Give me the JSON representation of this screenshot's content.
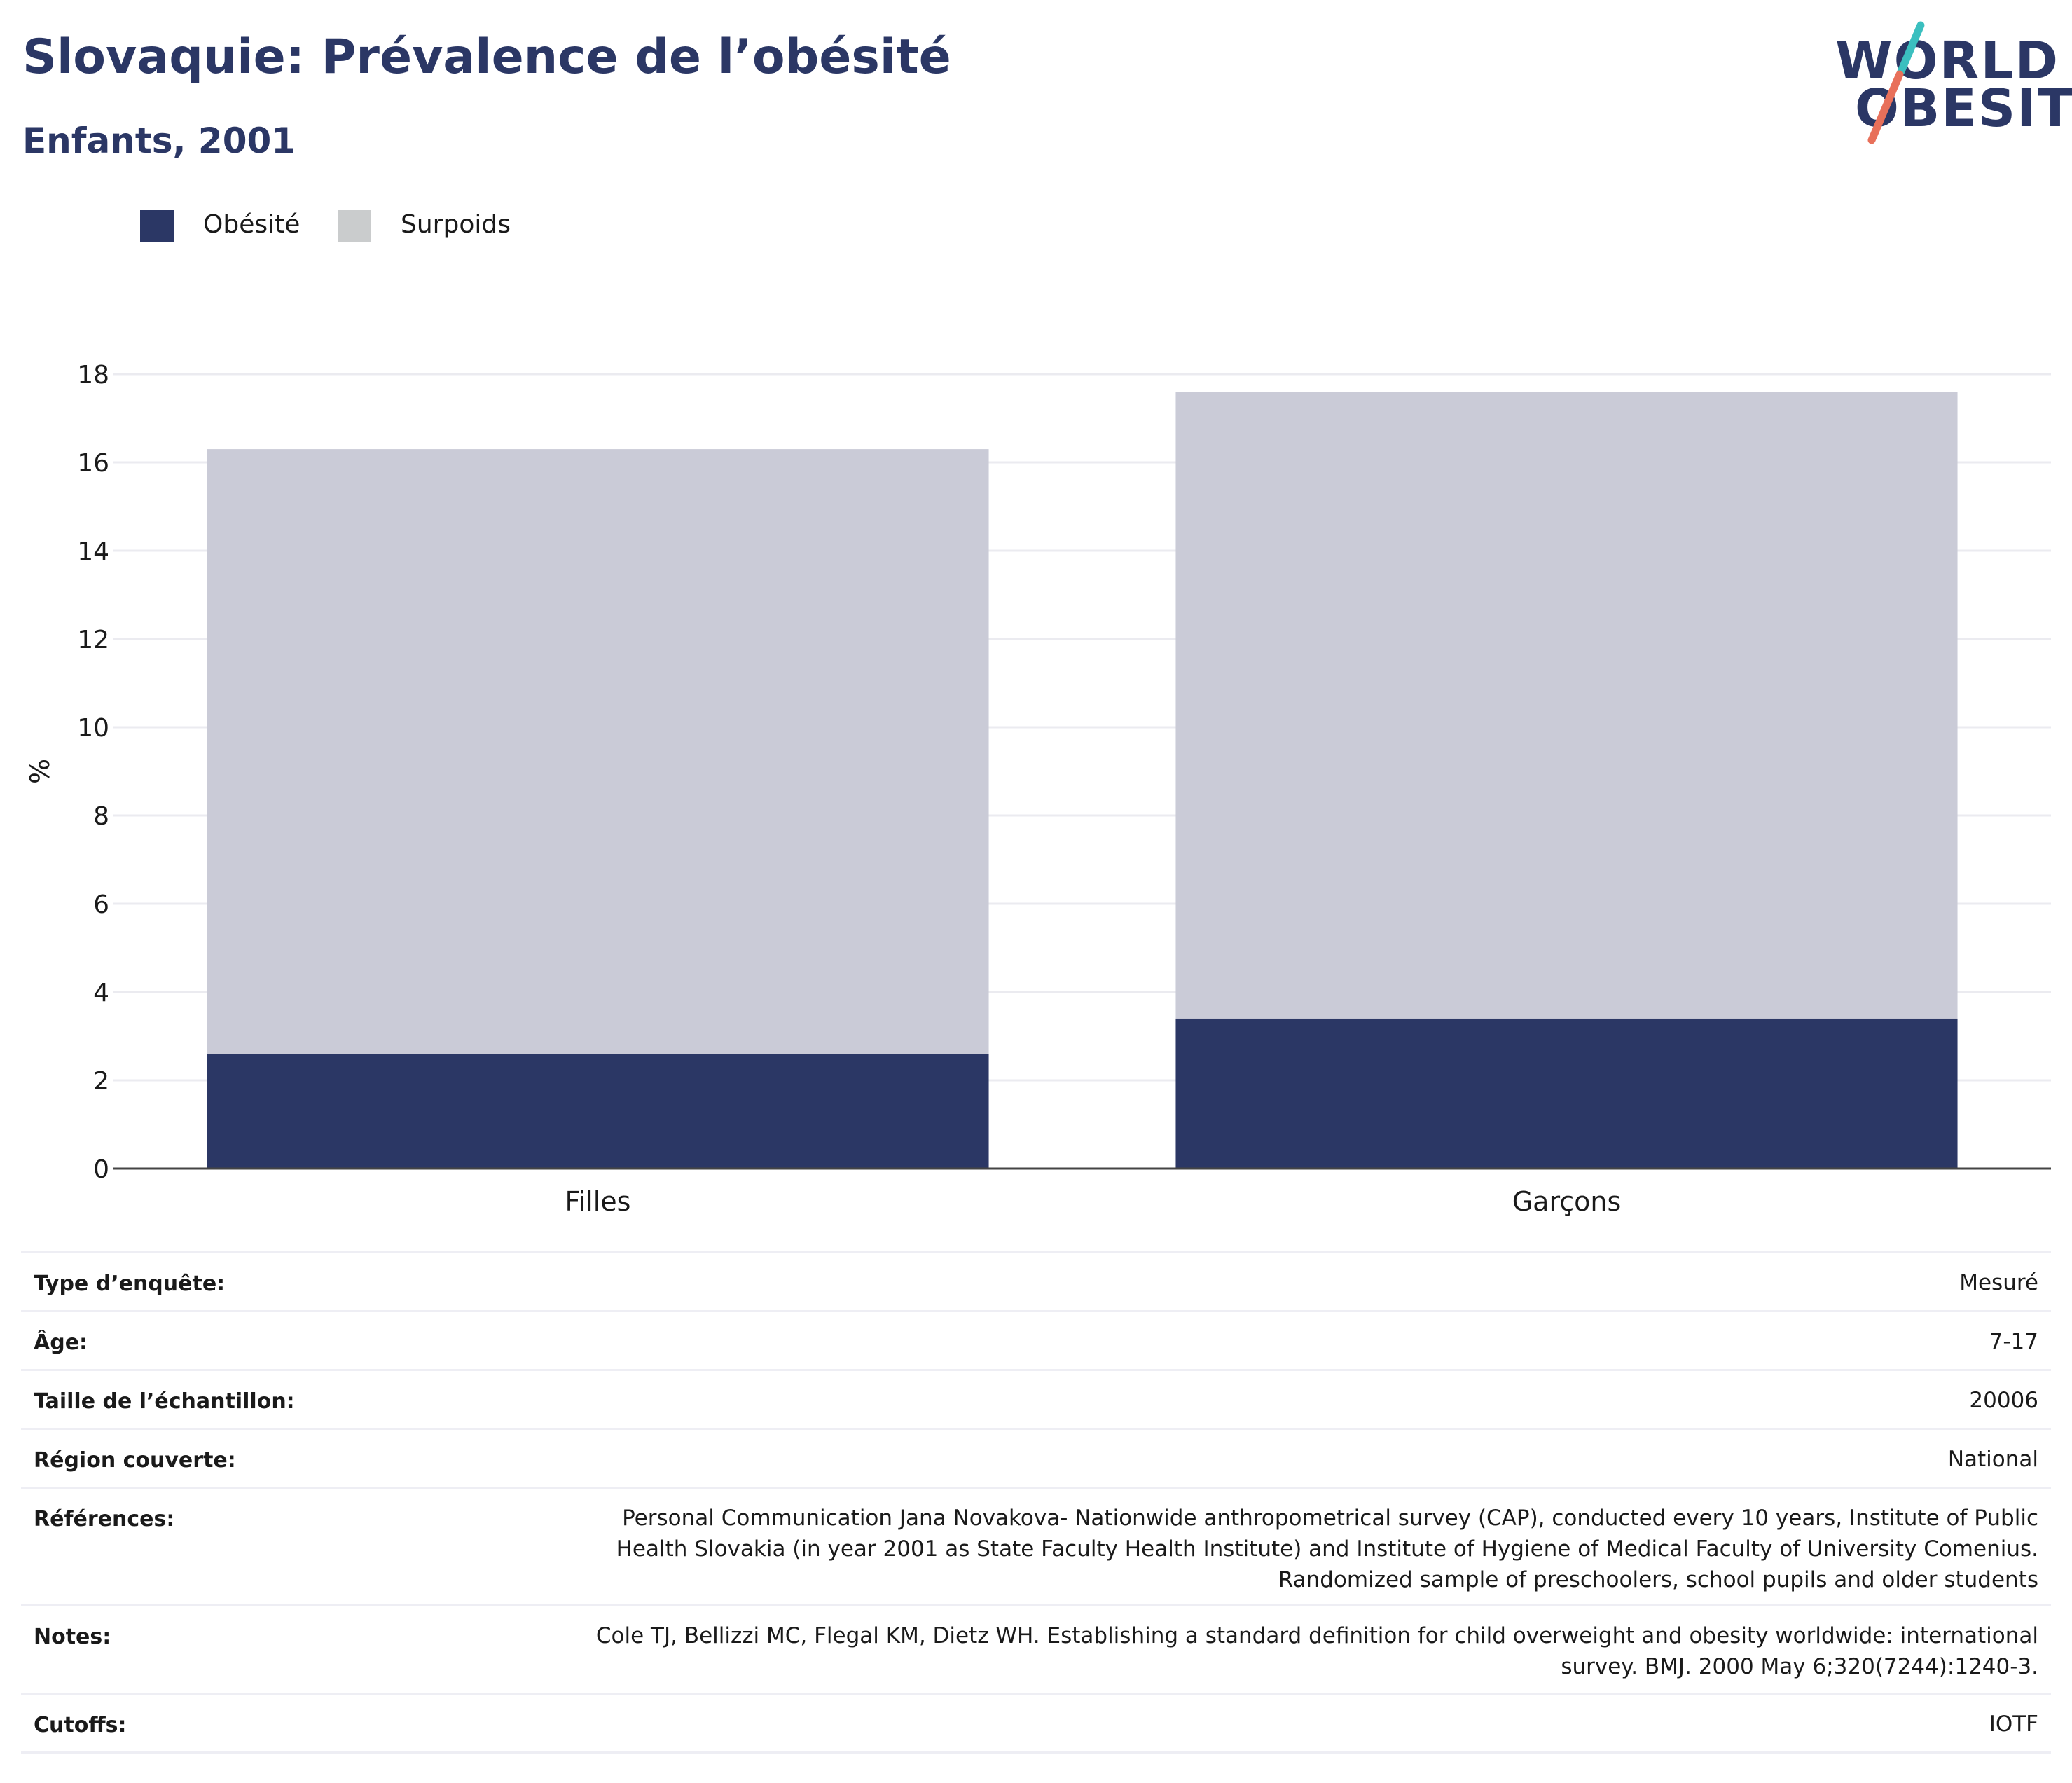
{
  "header": {
    "title": "Slovaquie: Prévalence de l’obésité",
    "subtitle": "Enfants, 2001"
  },
  "logo": {
    "line1": "WORLD",
    "line2": "OBESITY",
    "text_color": "#2b3765",
    "slash_colors": [
      "#3bbfbf",
      "#e8705a"
    ]
  },
  "legend": {
    "items": [
      {
        "label": "Obésité",
        "color": "#2b3765"
      },
      {
        "label": "Surpoids",
        "color": "#cacccd"
      }
    ]
  },
  "chart_data": {
    "type": "bar",
    "stacked": true,
    "categories": [
      "Filles",
      "Garçons"
    ],
    "series": [
      {
        "name": "Obésité",
        "color": "#2b3765",
        "values": [
          2.6,
          3.4
        ]
      },
      {
        "name": "Surpoids",
        "color": "#cacbd7",
        "values": [
          13.7,
          14.2
        ]
      }
    ],
    "ylabel": "%",
    "ylim": [
      0,
      18
    ],
    "yticks": [
      0,
      2,
      4,
      6,
      8,
      10,
      12,
      14,
      16,
      18
    ],
    "grid": true,
    "legend_position": "top-left"
  },
  "info": {
    "rows": [
      {
        "key": "Type d’enquête:",
        "value": "Mesuré"
      },
      {
        "key": "Âge:",
        "value": "7-17"
      },
      {
        "key": "Taille de l’échantillon:",
        "value": "20006"
      },
      {
        "key": "Région couverte:",
        "value": "National"
      },
      {
        "key": "Références:",
        "value": "Personal Communication Jana Novakova- Nationwide anthropometrical survey (CAP), conducted every 10 years, Institute of Public\nHealth Slovakia (in year 2001 as State Faculty Health Institute) and Institute of Hygiene of Medical Faculty of University Comenius.\nRandomized sample of preschoolers, school pupils and older students"
      },
      {
        "key": "Notes:",
        "value": "Cole TJ, Bellizzi MC, Flegal KM, Dietz WH. Establishing a standard definition for child overweight and obesity worldwide: international\nsurvey. BMJ. 2000 May 6;320(7244):1240-3."
      },
      {
        "key": "Cutoffs:",
        "value": "IOTF"
      }
    ]
  }
}
